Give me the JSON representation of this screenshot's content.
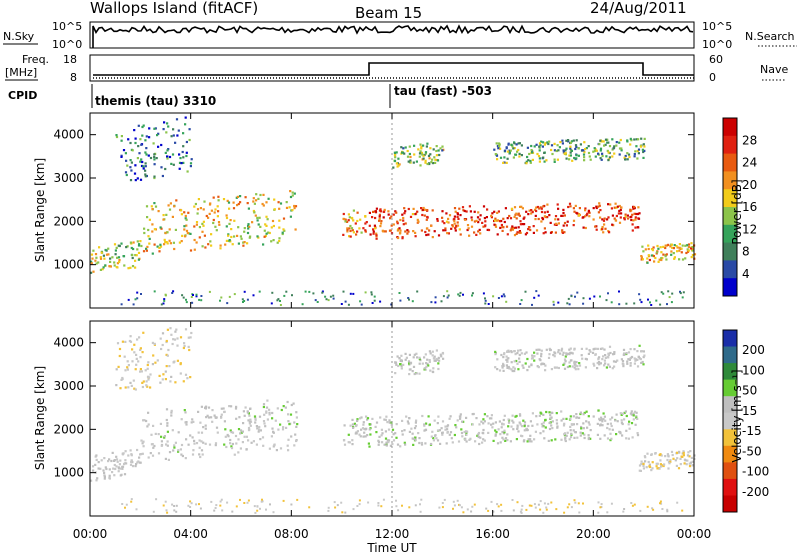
{
  "header": {
    "station": "Wallops Island (fitACF)",
    "beam": "Beam 15",
    "date": "24/Aug/2011"
  },
  "top_panels": {
    "nsky_label": "N.Sky",
    "nsearch_label": "N.Search",
    "nsky_ticks": [
      "10^5",
      "10^0"
    ],
    "freq_label_1": "Freq.",
    "freq_label_2": "[MHz]",
    "nave_label": "Nave",
    "freq_ticks": [
      "18",
      "8"
    ],
    "nave_ticks": [
      "60",
      "0"
    ],
    "cpid_label": "CPID",
    "cpid_entries": [
      "themis (tau) 3310",
      "tau (fast) -503"
    ]
  },
  "colors": {
    "power_scale": [
      "#0000cc",
      "#2a4aa6",
      "#3f7f5a",
      "#35a35a",
      "#8cc44a",
      "#f2cc1a",
      "#f29020",
      "#e85a10",
      "#e02010",
      "#cc0000"
    ],
    "velocity_scale": [
      "#1a2ea8",
      "#2f6a8a",
      "#2f8a3a",
      "#66cc33",
      "#bfbfbf",
      "#c8c8c8",
      "#f2c23a",
      "#f08a10",
      "#e05010",
      "#e01010",
      "#c80000"
    ]
  },
  "chart_data": [
    {
      "type": "heatmap",
      "name": "power",
      "ylabel": "Slant Range [km]",
      "ylim": [
        0,
        4500
      ],
      "yticks": [
        1000,
        2000,
        3000,
        4000
      ],
      "xlabel": "Time UT",
      "xlim": [
        "00:00",
        "24:00"
      ],
      "xticks": [
        "00:00",
        "04:00",
        "08:00",
        "12:00",
        "16:00",
        "20:00",
        "00:00"
      ],
      "colorbar_label": "Power [dB]",
      "colorbar_ticks": [
        4,
        8,
        12,
        16,
        20,
        24,
        28
      ],
      "bands": [
        {
          "t0": 0.0,
          "t1": 2.0,
          "r0": 900,
          "r1": 1500,
          "level": 0.45
        },
        {
          "t0": 2.0,
          "t1": 8.2,
          "r0": 1400,
          "r1": 2600,
          "level": 0.55
        },
        {
          "t0": 1.0,
          "t1": 4.0,
          "r0": 3000,
          "r1": 4300,
          "level": 0.2
        },
        {
          "t0": 10.0,
          "t1": 11.0,
          "r0": 1700,
          "r1": 2300,
          "level": 0.7
        },
        {
          "t0": 11.0,
          "t1": 21.8,
          "r0": 1700,
          "r1": 2400,
          "level": 0.85
        },
        {
          "t0": 12.0,
          "t1": 14.0,
          "r0": 3300,
          "r1": 3800,
          "level": 0.4
        },
        {
          "t0": 16.0,
          "t1": 22.0,
          "r0": 3400,
          "r1": 3900,
          "level": 0.35
        },
        {
          "t0": 21.8,
          "t1": 24.0,
          "r0": 1100,
          "r1": 1500,
          "level": 0.6
        }
      ]
    },
    {
      "type": "heatmap",
      "name": "velocity",
      "ylabel": "Slant Range [km]",
      "ylim": [
        0,
        4500
      ],
      "yticks": [
        1000,
        2000,
        3000,
        4000
      ],
      "xlabel": "Time UT",
      "xlim": [
        "00:00",
        "24:00"
      ],
      "xticks": [
        "00:00",
        "04:00",
        "08:00",
        "12:00",
        "16:00",
        "20:00",
        "00:00"
      ],
      "colorbar_label": "Velocity [m s⁻¹]",
      "colorbar_ticks": [
        200,
        100,
        50,
        15,
        -15,
        -50,
        -100,
        -200
      ],
      "bands": [
        {
          "t0": 0.0,
          "t1": 2.0,
          "r0": 900,
          "r1": 1500,
          "level": -20
        },
        {
          "t0": 2.0,
          "t1": 8.2,
          "r0": 1400,
          "r1": 2600,
          "level": -10
        },
        {
          "t0": 1.0,
          "t1": 4.0,
          "r0": 3000,
          "r1": 4300,
          "level": -40
        },
        {
          "t0": 10.0,
          "t1": 11.0,
          "r0": 1700,
          "r1": 2300,
          "level": -10
        },
        {
          "t0": 11.0,
          "t1": 21.8,
          "r0": 1700,
          "r1": 2400,
          "level": -5
        },
        {
          "t0": 12.0,
          "t1": 14.0,
          "r0": 3300,
          "r1": 3800,
          "level": -10
        },
        {
          "t0": 16.0,
          "t1": 22.0,
          "r0": 3400,
          "r1": 3900,
          "level": -10
        },
        {
          "t0": 21.8,
          "t1": 24.0,
          "r0": 1100,
          "r1": 1500,
          "level": -40
        }
      ]
    }
  ]
}
